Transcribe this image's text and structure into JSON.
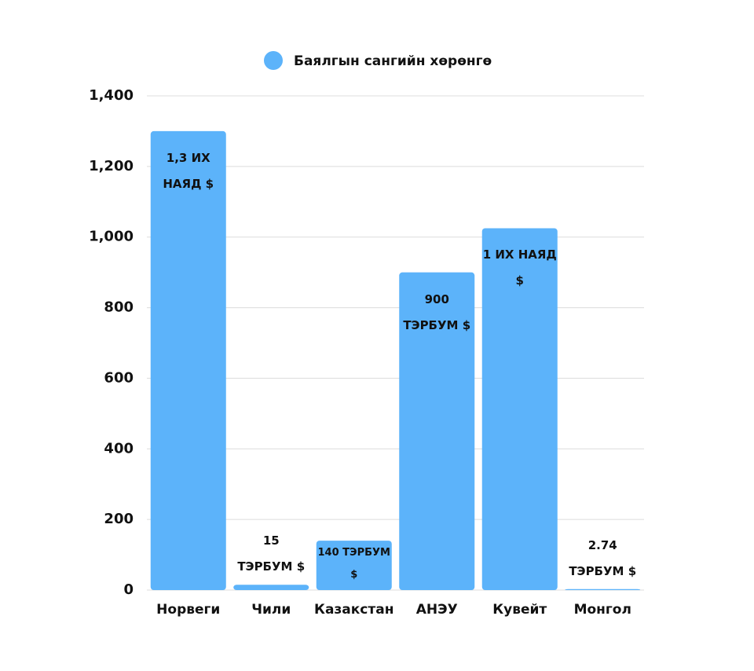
{
  "chart_data": {
    "type": "bar",
    "legend": "Баялгын сангийн хөрөнгө",
    "categories": [
      "Норвеги",
      "Чили",
      "Казакстан",
      "АНЭУ",
      "Кувейт",
      "Монгол"
    ],
    "values": [
      1300,
      15,
      140,
      900,
      1025,
      2.74
    ],
    "value_labels": [
      "1,3 их наяд $",
      "15 тэрбум $",
      "140 тэрбум $",
      "900 тэрбум $",
      "1 их наяд $",
      "2.74 тэрбум $"
    ],
    "color": "#5cb3fa",
    "ylim": [
      0,
      1400
    ],
    "yticks": [
      0,
      200,
      400,
      600,
      800,
      {
        "value": 1000,
        "label": "1,000"
      },
      {
        "value": 1200,
        "label": "1,200"
      },
      {
        "value": 1400,
        "label": "1,400"
      }
    ],
    "grid": true
  }
}
